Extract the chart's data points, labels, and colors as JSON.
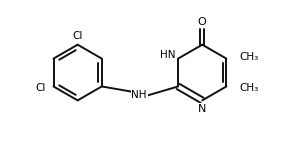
{
  "bg_color": "#ffffff",
  "line_color": "#111111",
  "line_width": 1.4,
  "figsize": [
    2.96,
    1.48
  ],
  "dpi": 100,
  "xlim": [
    0,
    10
  ],
  "ylim": [
    0,
    5
  ]
}
